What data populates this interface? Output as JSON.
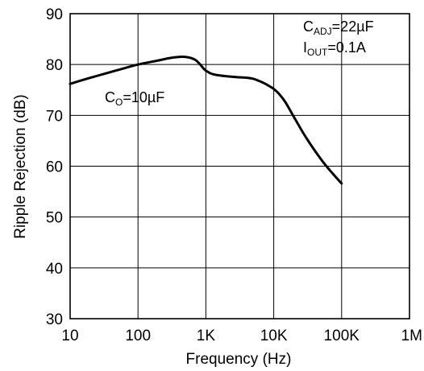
{
  "chart_data": {
    "type": "line",
    "xlabel": "Frequency (Hz)",
    "ylabel": "Ripple Rejection (dB)",
    "xscale": "log",
    "xlim": [
      10,
      1000000
    ],
    "ylim": [
      30,
      90
    ],
    "grid": true,
    "x_tick_values": [
      10,
      100,
      1000,
      10000,
      100000,
      1000000
    ],
    "x_tick_labels": [
      "10",
      "100",
      "1K",
      "10K",
      "100K",
      "1M"
    ],
    "y_tick_values": [
      30,
      40,
      50,
      60,
      70,
      80,
      90
    ],
    "y_tick_labels": [
      "30",
      "40",
      "50",
      "60",
      "70",
      "80",
      "90"
    ],
    "series": [
      {
        "label": "CO=10µF",
        "x": [
          10,
          20,
          50,
          100,
          200,
          300,
          400,
          500,
          600,
          700,
          800,
          900,
          1000,
          1200,
          1500,
          2000,
          3000,
          4000,
          5000,
          6000,
          7000,
          8000,
          9000,
          10000,
          12000,
          15000,
          20000,
          30000,
          50000,
          70000,
          100000
        ],
        "y": [
          76.2,
          77.4,
          78.9,
          80.0,
          80.8,
          81.3,
          81.5,
          81.5,
          81.3,
          80.9,
          80.2,
          79.4,
          78.8,
          78.2,
          77.9,
          77.7,
          77.5,
          77.4,
          77.2,
          76.8,
          76.4,
          76.0,
          75.6,
          75.2,
          74.2,
          72.5,
          69.6,
          65.6,
          61.3,
          58.9,
          56.6
        ]
      }
    ],
    "annotations": {
      "co": {
        "main": "C",
        "sub": "O",
        "rest": "=10µF"
      },
      "cadj": {
        "main": "C",
        "sub": "ADJ",
        "rest": "=22µF"
      },
      "iout": {
        "main": "I",
        "sub": "OUT",
        "rest": "=0.1A"
      }
    }
  }
}
